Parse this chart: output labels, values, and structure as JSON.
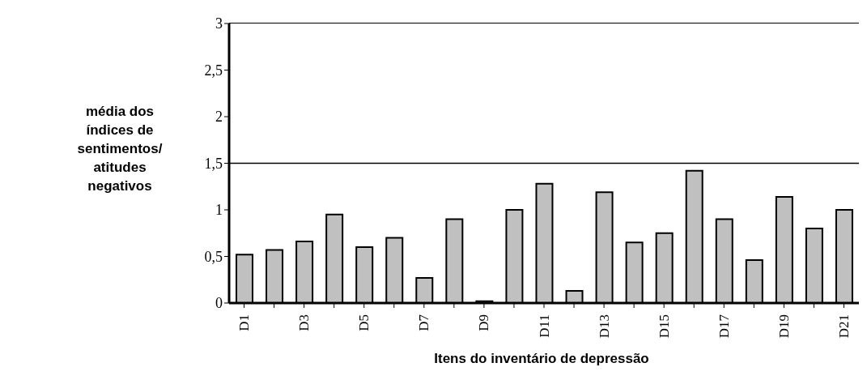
{
  "chart_data": {
    "type": "bar",
    "xlabel": "Itens do inventário de depressão",
    "ylabel": "média dos índices de sentimentos/ atitudes negativos",
    "categories": [
      "D1",
      null,
      "D3",
      null,
      "D5",
      null,
      "D7",
      null,
      "D9",
      null,
      "D11",
      null,
      "D13",
      null,
      "D15",
      null,
      "D17",
      null,
      "D19",
      null,
      "D21"
    ],
    "values": [
      0.52,
      0.57,
      0.66,
      0.95,
      0.6,
      0.7,
      0.27,
      0.9,
      0.02,
      1.0,
      1.28,
      0.13,
      1.19,
      0.65,
      0.75,
      1.42,
      0.9,
      0.46,
      1.14,
      0.8,
      1.0
    ],
    "color": "#c0c0c0",
    "ylim": [
      0,
      3
    ],
    "yticks": [
      0,
      {
        "value": 0.5,
        "label": "0,5"
      },
      1,
      {
        "value": 1.5,
        "label": "1,5"
      },
      2,
      {
        "value": 2.5,
        "label": "2,5"
      },
      3
    ],
    "ref_lines": [
      {
        "axis": "y",
        "value": 1.5,
        "color": "#000000"
      }
    ]
  }
}
